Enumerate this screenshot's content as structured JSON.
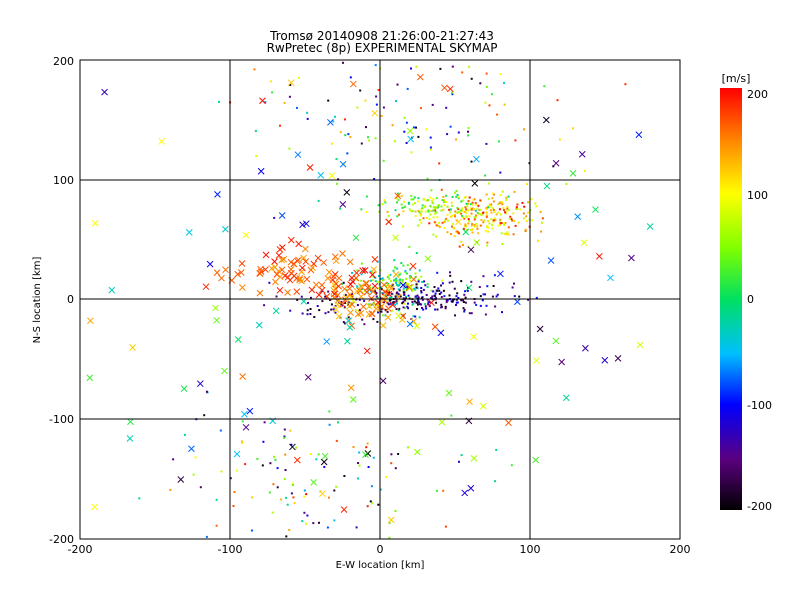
{
  "chart_data": {
    "type": "scatter",
    "title": "Tromsø 20140908 21:26:00-21:27:43",
    "subtitle": "RwPretec (8p) EXPERIMENTAL SKYMAP",
    "xlabel": "E-W location [km]",
    "ylabel": "N-S location [km]",
    "xlim": [
      -200,
      200
    ],
    "ylim": [
      -200,
      200
    ],
    "xticks": [
      "-200",
      "-100",
      "0",
      "100",
      "200"
    ],
    "yticks": [
      "-200",
      "-100",
      "0",
      "100",
      "200"
    ],
    "grid": true,
    "colorbar": {
      "label": "[m/s]",
      "range": [
        -200,
        200
      ],
      "ticks": [
        "200",
        "100",
        "0",
        "-100",
        "-200"
      ]
    },
    "markers": [
      "dot",
      "x"
    ],
    "clusters": [
      {
        "x": 70,
        "y": 70,
        "sx": 22,
        "sy": 10,
        "n": 240,
        "v_min": 60,
        "v_max": 200,
        "marker": "dot"
      },
      {
        "x": 35,
        "y": 78,
        "sx": 20,
        "sy": 6,
        "n": 120,
        "v_min": -20,
        "v_max": 130,
        "marker": "dot"
      },
      {
        "x": 10,
        "y": 12,
        "sx": 12,
        "sy": 10,
        "n": 170,
        "v_min": -60,
        "v_max": 90,
        "marker": "dot"
      },
      {
        "x": 40,
        "y": 2,
        "sx": 25,
        "sy": 8,
        "n": 170,
        "v_min": -200,
        "v_max": -90,
        "marker": "dot"
      },
      {
        "x": -20,
        "y": -5,
        "sx": 22,
        "sy": 8,
        "n": 90,
        "v_min": -200,
        "v_max": -120,
        "marker": "dot"
      },
      {
        "x": -60,
        "y": 25,
        "sx": 25,
        "sy": 10,
        "n": 70,
        "v_min": 140,
        "v_max": 200,
        "marker": "x"
      },
      {
        "x": -10,
        "y": 5,
        "sx": 15,
        "sy": 10,
        "n": 80,
        "v_min": 120,
        "v_max": 200,
        "marker": "x"
      },
      {
        "x": 20,
        "y": 150,
        "sx": 55,
        "sy": 35,
        "n": 130,
        "v_min": -200,
        "v_max": 200,
        "marker": "dot"
      },
      {
        "x": -40,
        "y": -150,
        "sx": 50,
        "sy": 30,
        "n": 120,
        "v_min": -200,
        "v_max": 200,
        "marker": "dot"
      },
      {
        "x": 0,
        "y": 0,
        "sx": 110,
        "sy": 110,
        "n": 160,
        "v_min": -200,
        "v_max": 200,
        "marker": "x"
      }
    ]
  }
}
